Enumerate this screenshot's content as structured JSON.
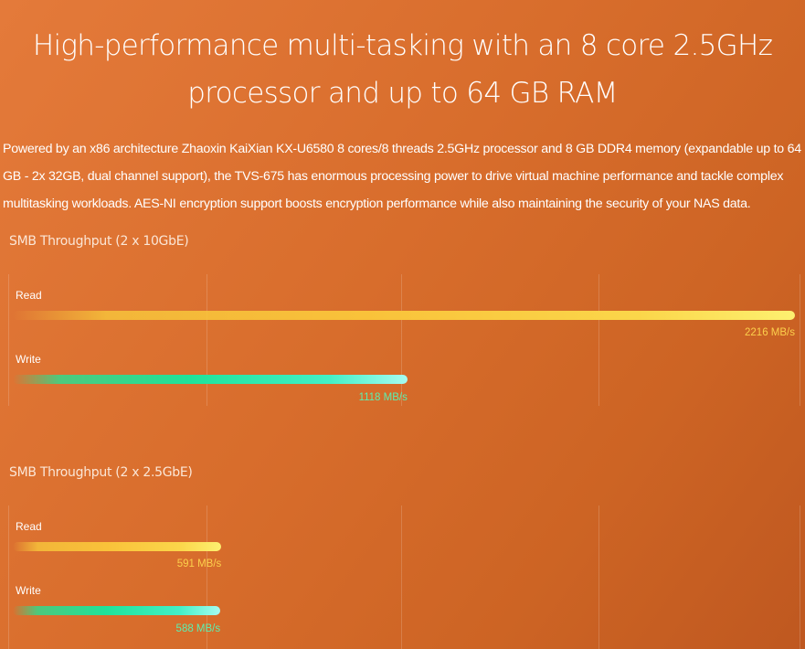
{
  "headline": {
    "line1": "High-performance multi-tasking with an 8 core 2.5GHz",
    "line2": "processor and up to 64 GB RAM"
  },
  "description": "Powered by an x86 architecture Zhaoxin KaiXian KX-U6580 8 cores/8 threads 2.5GHz processor and 8 GB DDR4 memory (expandable up to 64 GB - 2x 32GB, dual channel support), the TVS-675 has enormous processing power to drive virtual machine performance and tackle complex multitasking workloads. AES-NI encryption support boosts encryption performance while also maintaining the security of your NAS data.",
  "colors": {
    "background": "#d86d2c",
    "read": "#fbd64a",
    "write": "#1fe39a"
  },
  "chart_data": [
    {
      "type": "bar",
      "orientation": "horizontal",
      "title": "SMB Throughput (2 x 10GbE)",
      "categories": [
        "Read",
        "Write"
      ],
      "values": [
        2216,
        1118
      ],
      "value_labels": [
        "2216 MB/s",
        "1118 MB/s"
      ],
      "xlim": [
        0,
        2216
      ],
      "grid": true
    },
    {
      "type": "bar",
      "orientation": "horizontal",
      "title": "SMB Throughput (2 x 2.5GbE)",
      "categories": [
        "Read",
        "Write"
      ],
      "values": [
        591,
        588
      ],
      "value_labels": [
        "591 MB/s",
        "588 MB/s"
      ],
      "xlim": [
        0,
        2216
      ],
      "grid": true
    }
  ]
}
